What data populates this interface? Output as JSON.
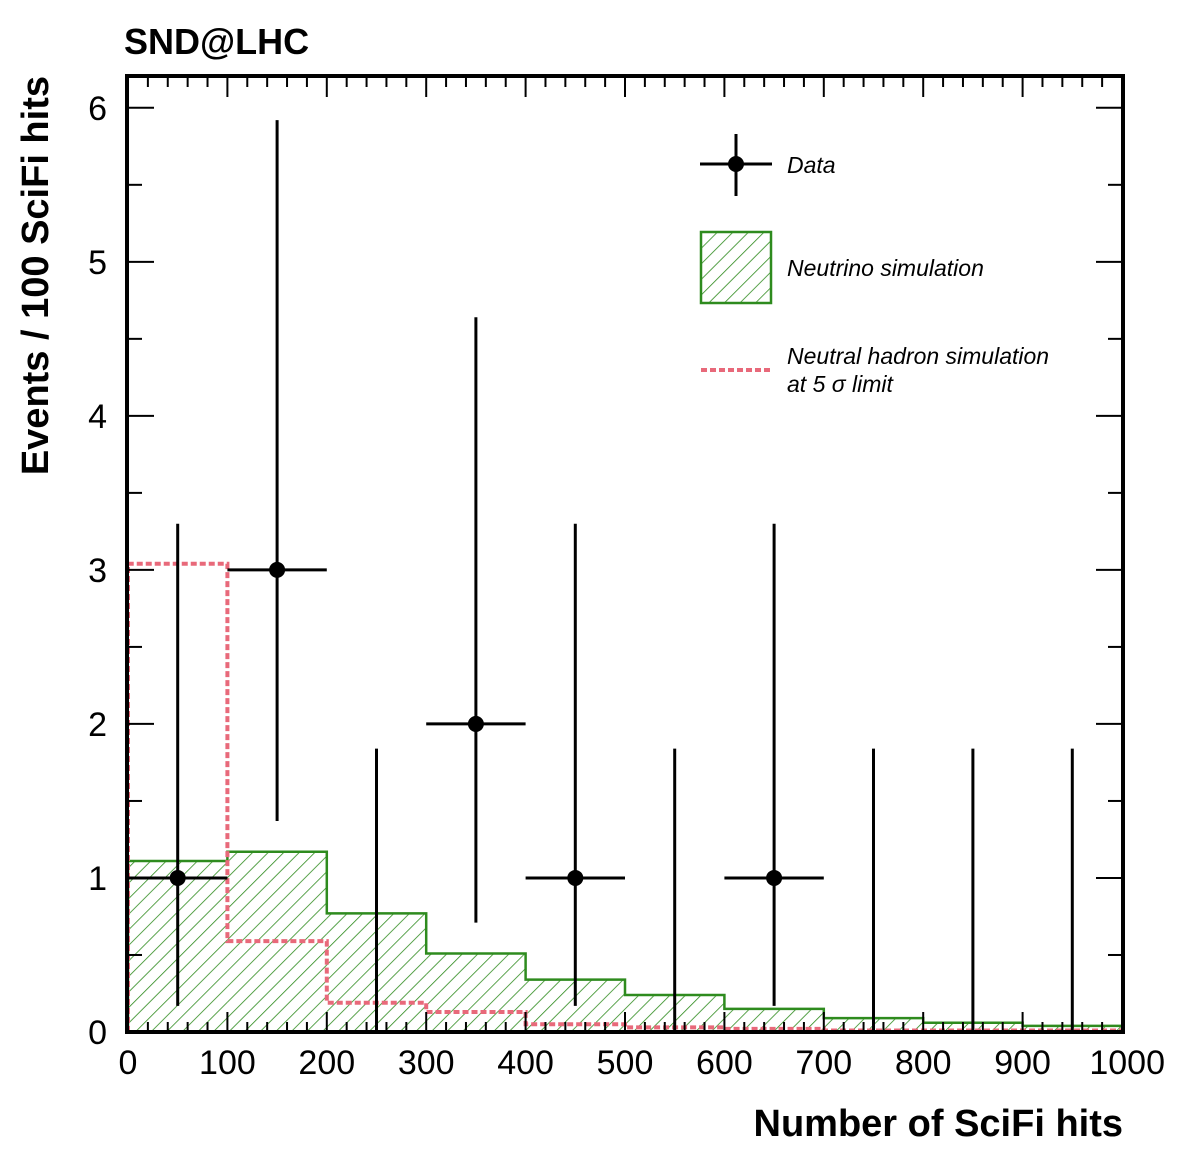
{
  "chart_data": {
    "type": "histogram",
    "title": "SND@LHC",
    "xlabel": "Number of SciFi hits",
    "ylabel": "Events / 100 SciFi hits",
    "xlim": [
      0,
      1000
    ],
    "ylim": [
      0,
      6.2
    ],
    "xticks": [
      "0",
      "100",
      "200",
      "300",
      "400",
      "500",
      "600",
      "700",
      "800",
      "900",
      "1000"
    ],
    "yticks": [
      "0",
      "1",
      "2",
      "3",
      "4",
      "5",
      "6"
    ],
    "bin_edges": [
      0,
      100,
      200,
      300,
      400,
      500,
      600,
      700,
      800,
      900,
      1000
    ],
    "series": [
      {
        "name": "Data",
        "type": "points",
        "color": "#000000",
        "points": [
          {
            "x": 50,
            "y": 1,
            "x_err": 50,
            "y_low": 0.17,
            "y_high": 3.3
          },
          {
            "x": 150,
            "y": 3,
            "x_err": 50,
            "y_low": 1.37,
            "y_high": 5.92
          },
          {
            "x": 250,
            "y": 0,
            "x_err": 0,
            "y_low": 0,
            "y_high": 1.84
          },
          {
            "x": 350,
            "y": 2,
            "x_err": 50,
            "y_low": 0.71,
            "y_high": 4.64
          },
          {
            "x": 450,
            "y": 1,
            "x_err": 50,
            "y_low": 0.17,
            "y_high": 3.3
          },
          {
            "x": 550,
            "y": 0,
            "x_err": 0,
            "y_low": 0,
            "y_high": 1.84
          },
          {
            "x": 650,
            "y": 1,
            "x_err": 50,
            "y_low": 0.17,
            "y_high": 3.3
          },
          {
            "x": 750,
            "y": 0,
            "x_err": 0,
            "y_low": 0,
            "y_high": 1.84
          },
          {
            "x": 850,
            "y": 0,
            "x_err": 0,
            "y_low": 0,
            "y_high": 1.84
          },
          {
            "x": 950,
            "y": 0,
            "x_err": 0,
            "y_low": 0,
            "y_high": 1.84
          }
        ]
      },
      {
        "name": "Neutrino simulation",
        "type": "hist-hatched",
        "color": "#2e8b1e",
        "values": [
          1.11,
          1.17,
          0.77,
          0.51,
          0.34,
          0.24,
          0.15,
          0.09,
          0.06,
          0.04
        ]
      },
      {
        "name": "Neutral hadron simulation",
        "name_line2": "at 5 σ limit",
        "type": "hist-dashed",
        "color": "#e8697a",
        "values": [
          3.04,
          0.59,
          0.19,
          0.13,
          0.05,
          0.03,
          0.02,
          0.01,
          0.01,
          0.01
        ]
      }
    ],
    "legend": {
      "position": "top-right",
      "entries": [
        "Data",
        "Neutrino simulation",
        "Neutral hadron simulation",
        "at 5 σ limit"
      ]
    }
  }
}
